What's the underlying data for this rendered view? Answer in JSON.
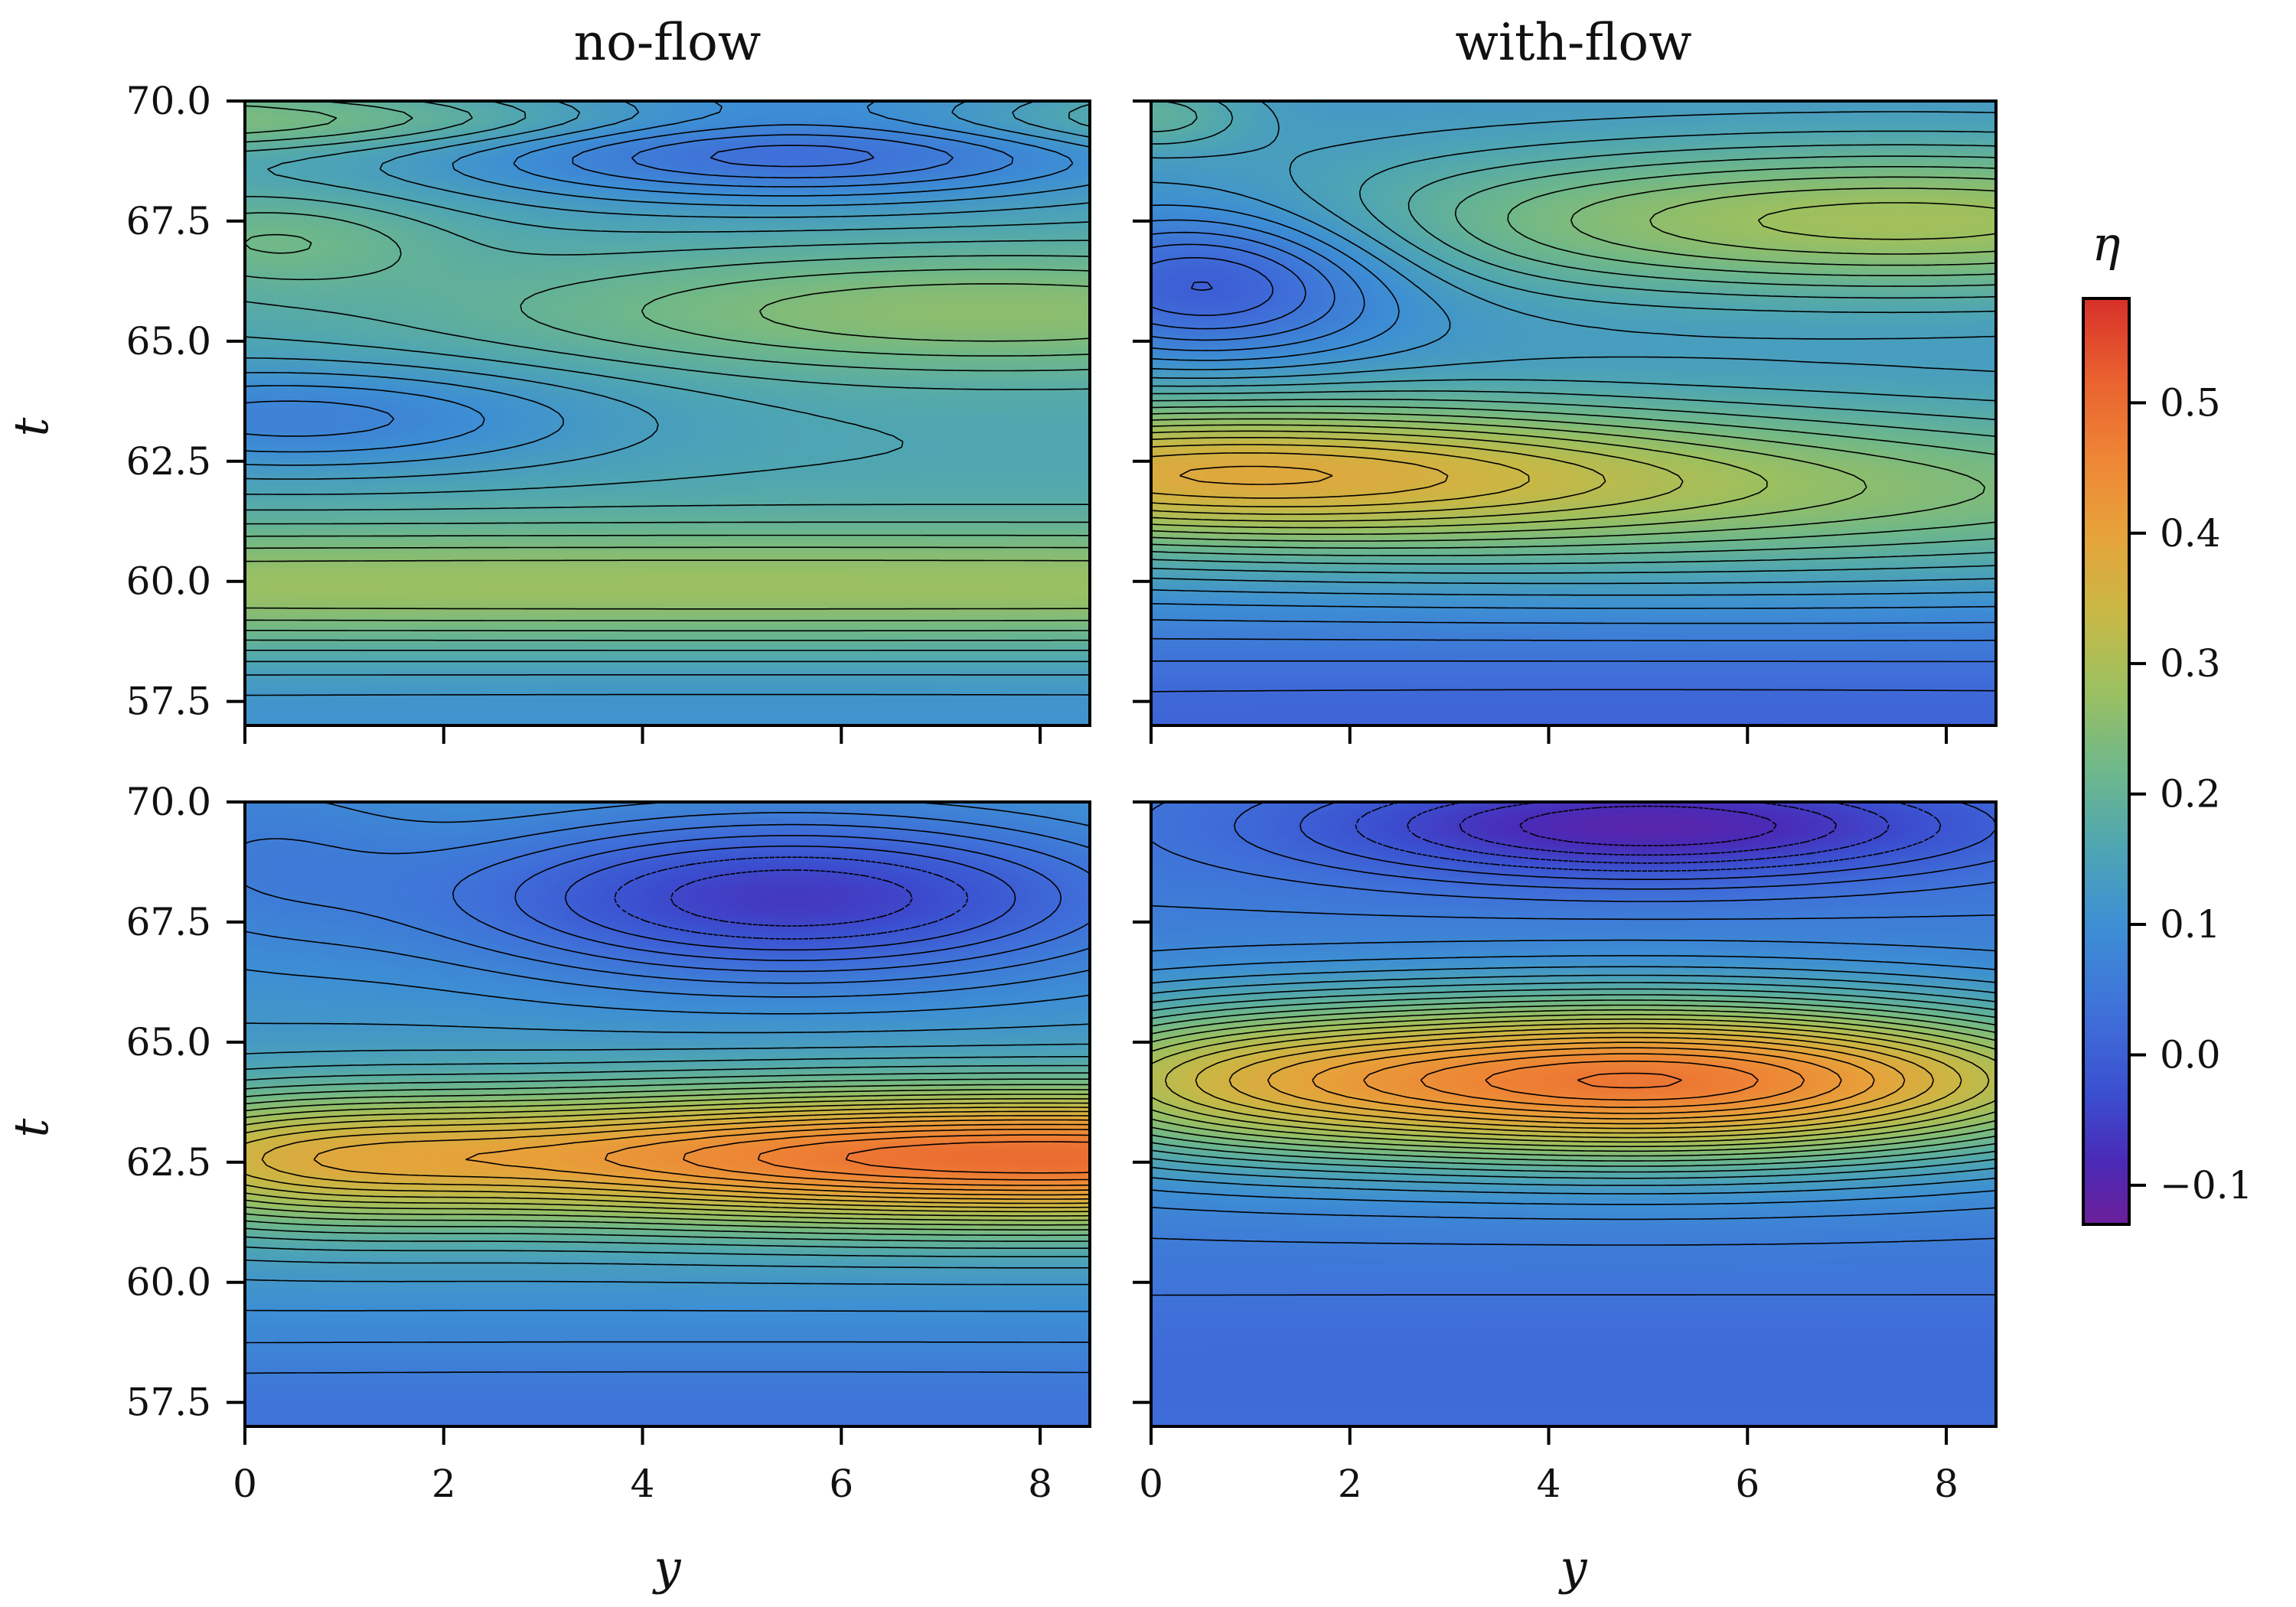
{
  "chart_data": {
    "type": "heatmap",
    "colorbar": {
      "title": "η",
      "range": [
        -0.13,
        0.58
      ],
      "ticks": [
        -0.1,
        0.0,
        0.1,
        0.2,
        0.3,
        0.4,
        0.5
      ],
      "tick_labels": [
        "−0.1",
        "0.0",
        "0.1",
        "0.2",
        "0.3",
        "0.4",
        "0.5"
      ],
      "colormap": [
        [
          -0.13,
          "#6b1f9a"
        ],
        [
          -0.08,
          "#4a2bb8"
        ],
        [
          -0.03,
          "#3b4fd0"
        ],
        [
          0.03,
          "#3f6fd9"
        ],
        [
          0.1,
          "#3d8fd4"
        ],
        [
          0.16,
          "#4fa6b2"
        ],
        [
          0.22,
          "#6fb88a"
        ],
        [
          0.28,
          "#9cc060"
        ],
        [
          0.34,
          "#c9b845"
        ],
        [
          0.4,
          "#e7a23a"
        ],
        [
          0.46,
          "#ee8435"
        ],
        [
          0.52,
          "#e9602f"
        ],
        [
          0.58,
          "#d8302a"
        ]
      ]
    },
    "columns": [
      "no-flow",
      "with-flow"
    ],
    "panels": [
      {
        "row": 0,
        "col": 0,
        "title": "no-flow",
        "xlabel": "",
        "ylabel": "t",
        "xlim": [
          0,
          8.5
        ],
        "ylim": [
          57.0,
          70.0
        ],
        "xticks": [
          0,
          2,
          4,
          6,
          8
        ],
        "yticks": [
          57.5,
          60.0,
          62.5,
          65.0,
          67.5,
          70.0
        ],
        "show_xticklabels": false,
        "show_yticklabels": true,
        "base": 0.16,
        "features": [
          {
            "y": 0.0,
            "t": 69.6,
            "sy": 25,
            "st": 0.45,
            "a": 0.09
          },
          {
            "y": 5.5,
            "t": 69.3,
            "sy": 2.5,
            "st": 0.9,
            "a": -0.17
          },
          {
            "y": 0.3,
            "t": 67.1,
            "sy": 1.2,
            "st": 0.7,
            "a": 0.06
          },
          {
            "y": 7.5,
            "t": 65.6,
            "sy": 3.5,
            "st": 0.9,
            "a": 0.1
          },
          {
            "y": 0.5,
            "t": 63.4,
            "sy": 2.2,
            "st": 0.8,
            "a": -0.09
          },
          {
            "y": 5.0,
            "t": 59.9,
            "sy": 30,
            "st": 0.9,
            "a": 0.12
          },
          {
            "y": 5.0,
            "t": 57.2,
            "sy": 30,
            "st": 1.0,
            "a": -0.05
          }
        ]
      },
      {
        "row": 0,
        "col": 1,
        "title": "with-flow",
        "xlabel": "",
        "ylabel": "",
        "xlim": [
          0,
          8.5
        ],
        "ylim": [
          57.0,
          70.0
        ],
        "xticks": [
          0,
          2,
          4,
          6,
          8
        ],
        "yticks": [
          57.5,
          60.0,
          62.5,
          65.0,
          67.5,
          70.0
        ],
        "show_xticklabels": false,
        "show_yticklabels": false,
        "base": 0.12,
        "features": [
          {
            "y": 0.0,
            "t": 69.7,
            "sy": 0.7,
            "st": 0.5,
            "a": 0.07
          },
          {
            "y": 0.6,
            "t": 66.3,
            "sy": 1.3,
            "st": 1.1,
            "a": -0.14
          },
          {
            "y": 7.5,
            "t": 67.5,
            "sy": 4.0,
            "st": 1.1,
            "a": 0.17
          },
          {
            "y": 0.3,
            "t": 62.3,
            "sy": 3.5,
            "st": 1.0,
            "a": 0.19
          },
          {
            "y": 6.0,
            "t": 61.8,
            "sy": 6.0,
            "st": 1.3,
            "a": 0.12
          },
          {
            "y": 5.0,
            "t": 57.0,
            "sy": 30,
            "st": 1.8,
            "a": -0.11
          }
        ]
      },
      {
        "row": 1,
        "col": 0,
        "title": "",
        "xlabel": "y",
        "ylabel": "t",
        "xlim": [
          0,
          8.5
        ],
        "ylim": [
          57.0,
          70.0
        ],
        "xticks": [
          0,
          2,
          4,
          6,
          8
        ],
        "yticks": [
          57.5,
          60.0,
          62.5,
          65.0,
          67.5,
          70.0
        ],
        "show_xticklabels": true,
        "show_yticklabels": true,
        "base": 0.12,
        "features": [
          {
            "y": 8.0,
            "t": 62.6,
            "sy": 6.0,
            "st": 1.0,
            "a": 0.38
          },
          {
            "y": 0.5,
            "t": 62.5,
            "sy": 1.5,
            "st": 1.0,
            "a": 0.08
          },
          {
            "y": 5.5,
            "t": 68.0,
            "sy": 2.5,
            "st": 1.2,
            "a": -0.18
          },
          {
            "y": 0.0,
            "t": 69.0,
            "sy": 1.2,
            "st": 1.5,
            "a": -0.05
          },
          {
            "y": 5.0,
            "t": 57.0,
            "sy": 30,
            "st": 1.5,
            "a": -0.08
          }
        ]
      },
      {
        "row": 1,
        "col": 1,
        "title": "",
        "xlabel": "y",
        "ylabel": "",
        "xlim": [
          0,
          8.5
        ],
        "ylim": [
          57.0,
          70.0
        ],
        "xticks": [
          0,
          2,
          4,
          6,
          8
        ],
        "yticks": [
          57.5,
          60.0,
          62.5,
          65.0,
          67.5,
          70.0
        ],
        "show_xticklabels": true,
        "show_yticklabels": false,
        "base": 0.06,
        "features": [
          {
            "y": 5.0,
            "t": 64.2,
            "sy": 3.5,
            "st": 1.2,
            "a": 0.42
          },
          {
            "y": 0.3,
            "t": 64.2,
            "sy": 1.8,
            "st": 1.2,
            "a": 0.1
          },
          {
            "y": 5.0,
            "t": 69.5,
            "sy": 2.5,
            "st": 0.8,
            "a": -0.16
          },
          {
            "y": 5.0,
            "t": 58.0,
            "sy": 30,
            "st": 1.5,
            "a": -0.04
          }
        ]
      }
    ],
    "contour_levels": {
      "start": -0.12,
      "end": 0.56,
      "step": 0.02,
      "negative_linestyle": "dashed"
    }
  }
}
